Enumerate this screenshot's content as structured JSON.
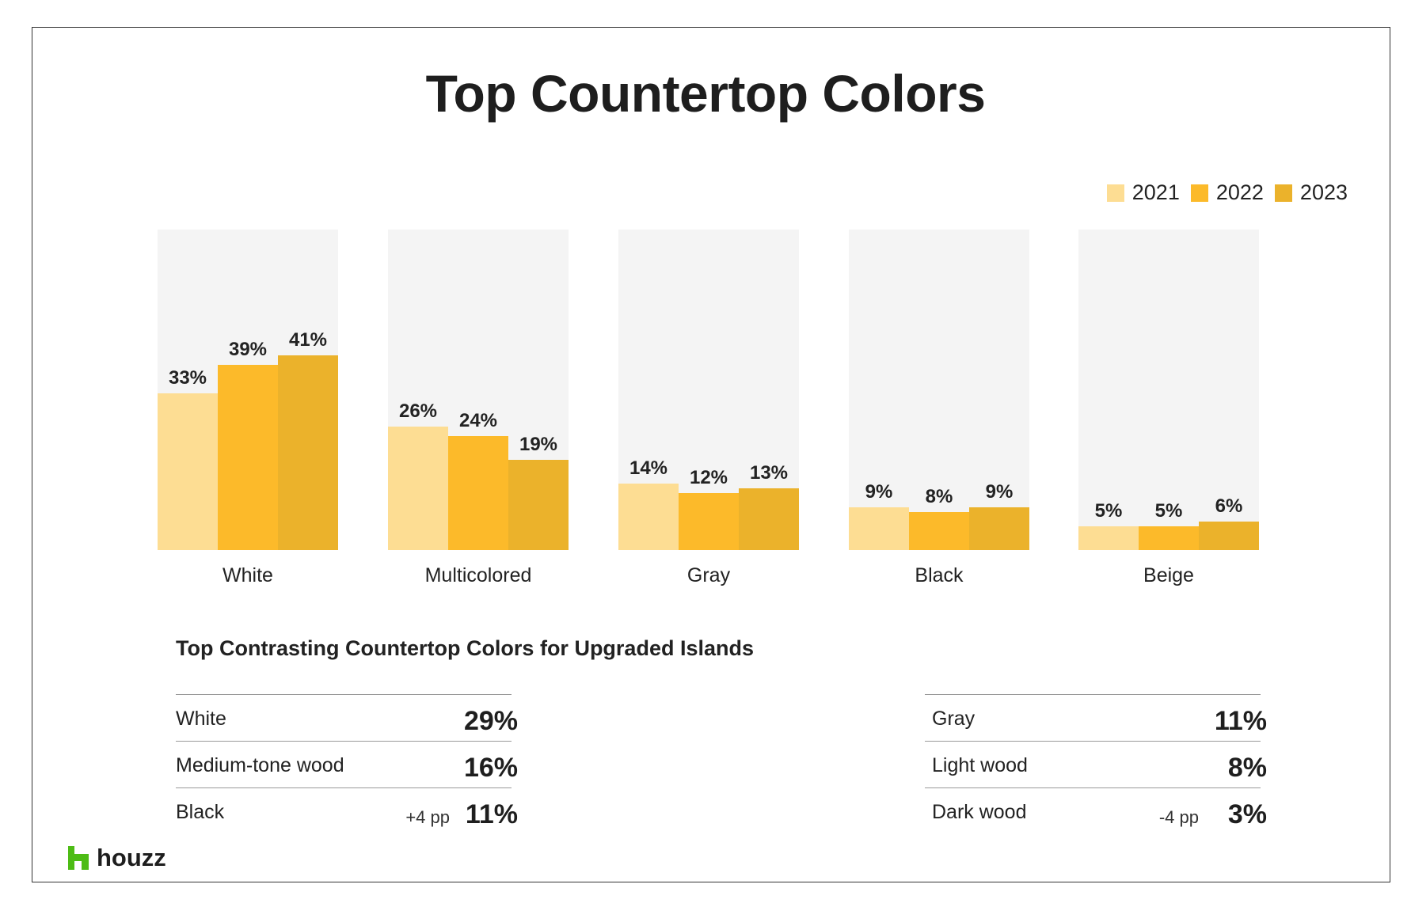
{
  "title": "Top Countertop Colors",
  "colors": {
    "y2021": "#FDDD93",
    "y2022": "#FCBA2A",
    "y2023": "#EBB22B",
    "panel": "#F4F4F4",
    "logo_green": "#4DBC15"
  },
  "chart_data": {
    "type": "bar",
    "title": "Top Countertop Colors",
    "categories": [
      "White",
      "Multicolored",
      "Gray",
      "Black",
      "Beige"
    ],
    "series": [
      {
        "name": "2021",
        "values": [
          33,
          26,
          14,
          9,
          5
        ]
      },
      {
        "name": "2022",
        "values": [
          39,
          24,
          12,
          8,
          5
        ]
      },
      {
        "name": "2023",
        "values": [
          41,
          19,
          13,
          9,
          6
        ]
      }
    ],
    "value_labels": [
      [
        "33%",
        "39%",
        "41%"
      ],
      [
        "26%",
        "24%",
        "19%"
      ],
      [
        "14%",
        "12%",
        "13%"
      ],
      [
        "9%",
        "8%",
        "9%"
      ],
      [
        "5%",
        "5%",
        "6%"
      ]
    ],
    "xlabel": "",
    "ylabel": "",
    "ylim": [
      0,
      60
    ],
    "legend": "top-right",
    "grid": false
  },
  "contrast": {
    "title": "Top Contrasting Countertop Colors for Upgraded Islands",
    "left": [
      {
        "label": "White",
        "change": "",
        "value": "29%"
      },
      {
        "label": "Medium-tone wood",
        "change": "",
        "value": "16%"
      },
      {
        "label": "Black",
        "change": "+4 pp",
        "value": "11%"
      }
    ],
    "right": [
      {
        "label": "Gray",
        "change": "",
        "value": "11%"
      },
      {
        "label": "Light wood",
        "change": "",
        "value": "8%"
      },
      {
        "label": "Dark wood",
        "change": "-4 pp",
        "value": "3%"
      }
    ]
  },
  "logo": {
    "text": "houzz",
    "icon": "houzz-logo-icon"
  }
}
